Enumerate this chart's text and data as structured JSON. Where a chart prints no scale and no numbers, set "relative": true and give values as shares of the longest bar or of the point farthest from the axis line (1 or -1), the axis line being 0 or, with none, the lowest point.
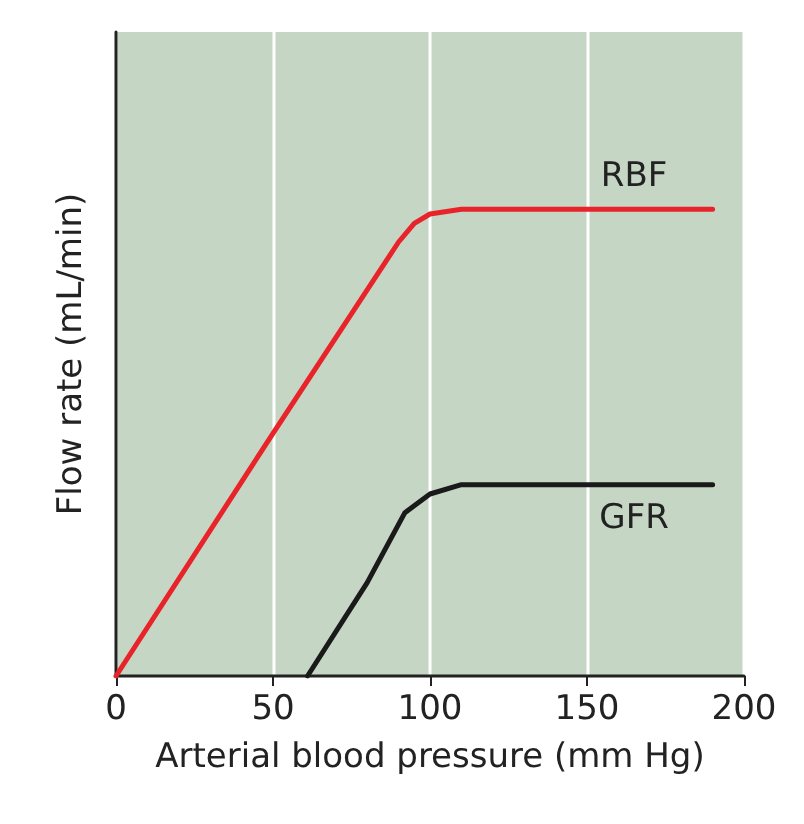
{
  "chart_data": {
    "type": "line",
    "xlabel": "Arterial blood pressure (mm Hg)",
    "ylabel": "Flow rate (mL/min)",
    "relative": true,
    "xlim": [
      0,
      200
    ],
    "xticks": [
      0,
      50,
      100,
      150,
      200
    ],
    "grid": "x",
    "tick_labels": "x",
    "legend": false,
    "marker": "none",
    "line_style": "solid",
    "series": [
      {
        "name": "RBF",
        "color": "#e8232a",
        "x": [
          0,
          50,
          90,
          95,
          100,
          110,
          190
        ],
        "values": [
          0,
          0.52,
          0.93,
          0.97,
          0.99,
          1,
          1
        ]
      },
      {
        "name": "GFR",
        "color": "#1a1a1a",
        "x": [
          61,
          80,
          92,
          100,
          110,
          190
        ],
        "values": [
          0,
          0.2,
          0.35,
          0.39,
          0.41,
          0.41
        ]
      }
    ]
  }
}
